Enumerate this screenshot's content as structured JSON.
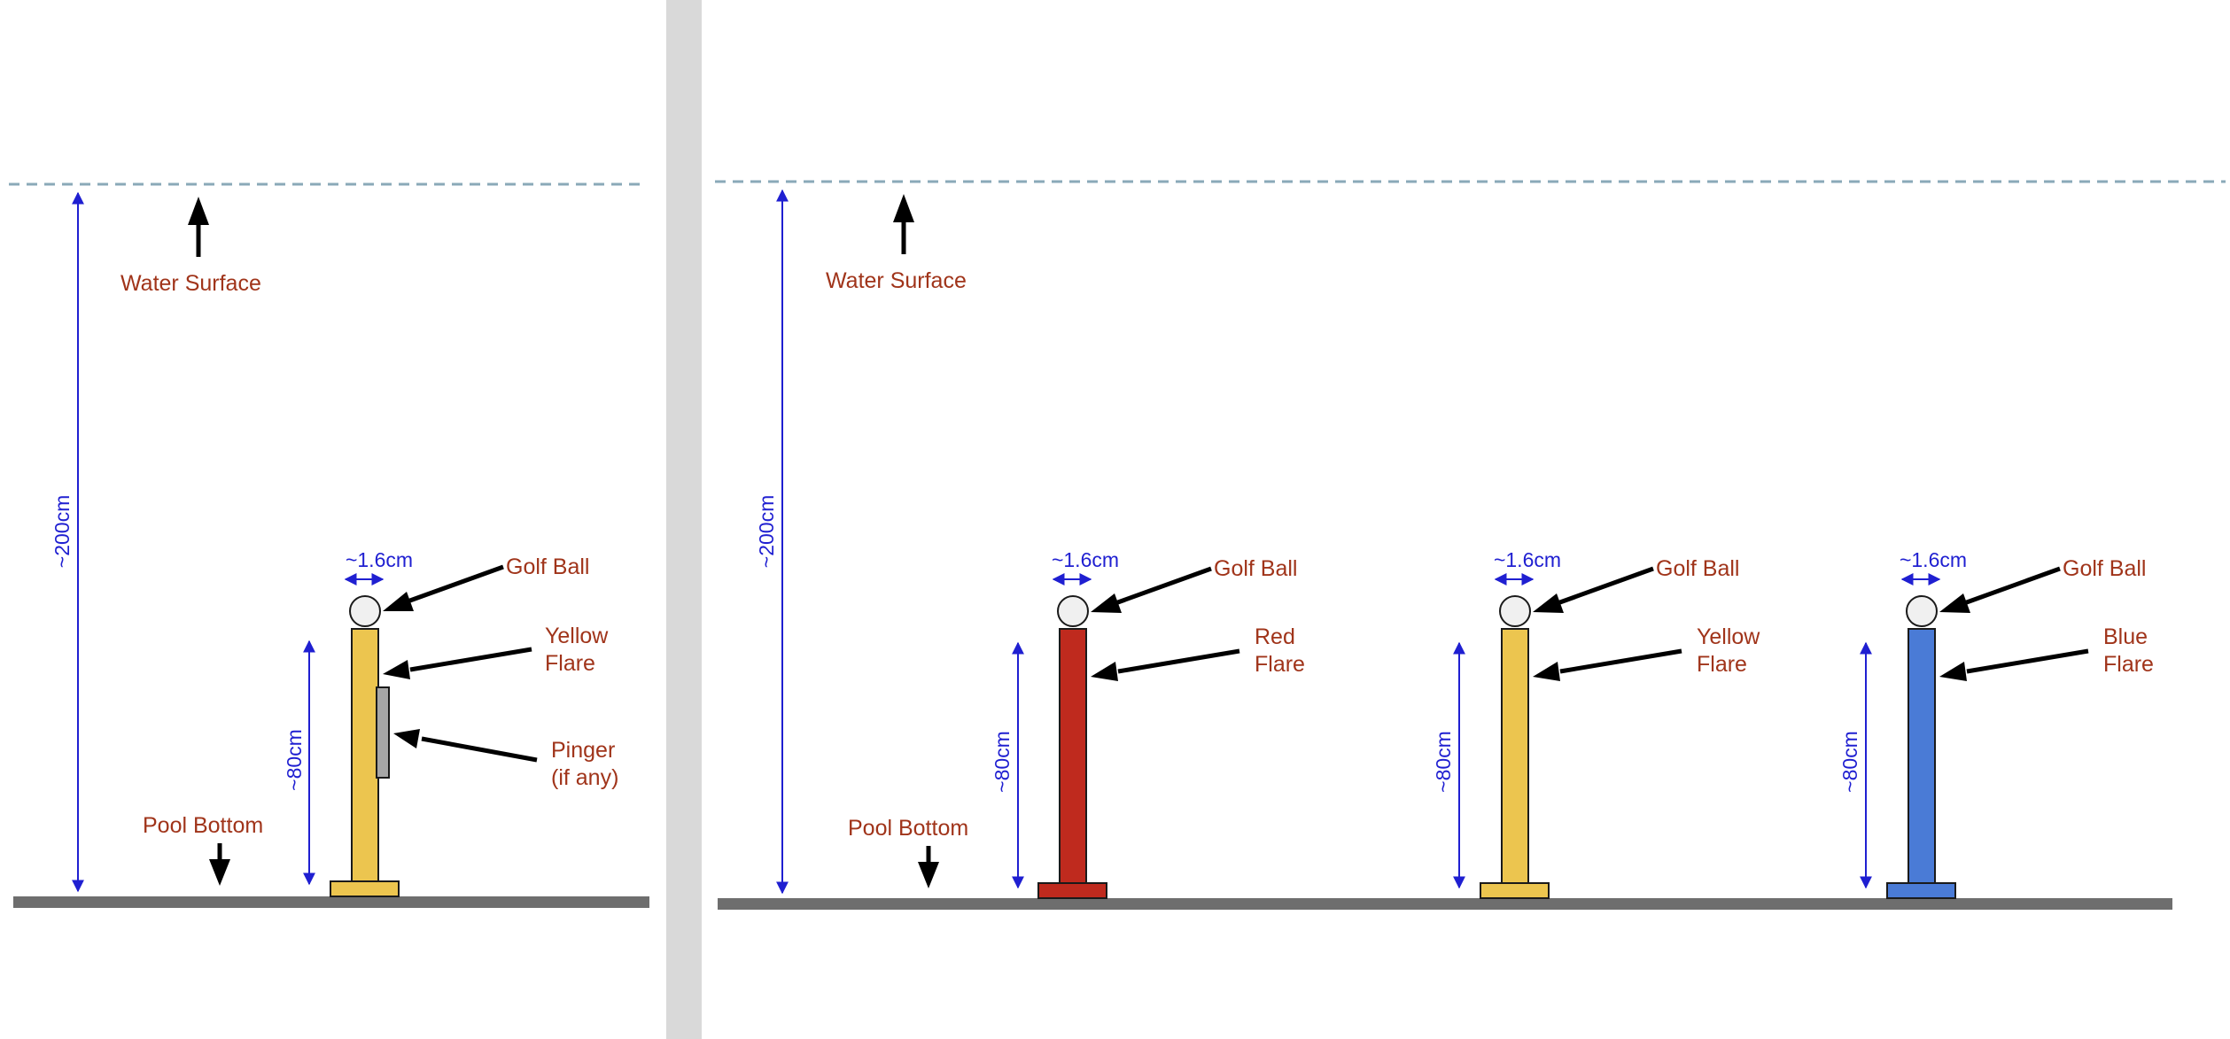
{
  "left_panel": {
    "water_surface": "Water Surface",
    "pool_bottom": "Pool Bottom",
    "depth": "~200cm",
    "post": {
      "ball_width": "~1.6cm",
      "height": "~80cm",
      "golf_ball": "Golf Ball",
      "flare_line1": "Yellow",
      "flare_line2": "Flare",
      "pinger_line1": "Pinger",
      "pinger_line2": "(if any)",
      "color": "#ecc54f",
      "base_color": "#ecc54f",
      "pinger_color": "#a6a6a6"
    }
  },
  "right_panel": {
    "water_surface": "Water Surface",
    "pool_bottom": "Pool Bottom",
    "depth": "~200cm",
    "posts": [
      {
        "ball_width": "~1.6cm",
        "height": "~80cm",
        "golf_ball": "Golf Ball",
        "flare_line1": "Red",
        "flare_line2": "Flare",
        "color": "#bf2a1e"
      },
      {
        "ball_width": "~1.6cm",
        "height": "~80cm",
        "golf_ball": "Golf Ball",
        "flare_line1": "Yellow",
        "flare_line2": "Flare",
        "color": "#ecc54f"
      },
      {
        "ball_width": "~1.6cm",
        "height": "~80cm",
        "golf_ball": "Golf Ball",
        "flare_line1": "Blue",
        "flare_line2": "Flare",
        "color": "#4a7bd6"
      }
    ]
  },
  "colors": {
    "label_text": "#a0341a",
    "dimension": "#1f1fd1",
    "water_line": "#8aa9b8",
    "pool_floor": "#6e6e6e",
    "separator": "#d9d9d9"
  }
}
